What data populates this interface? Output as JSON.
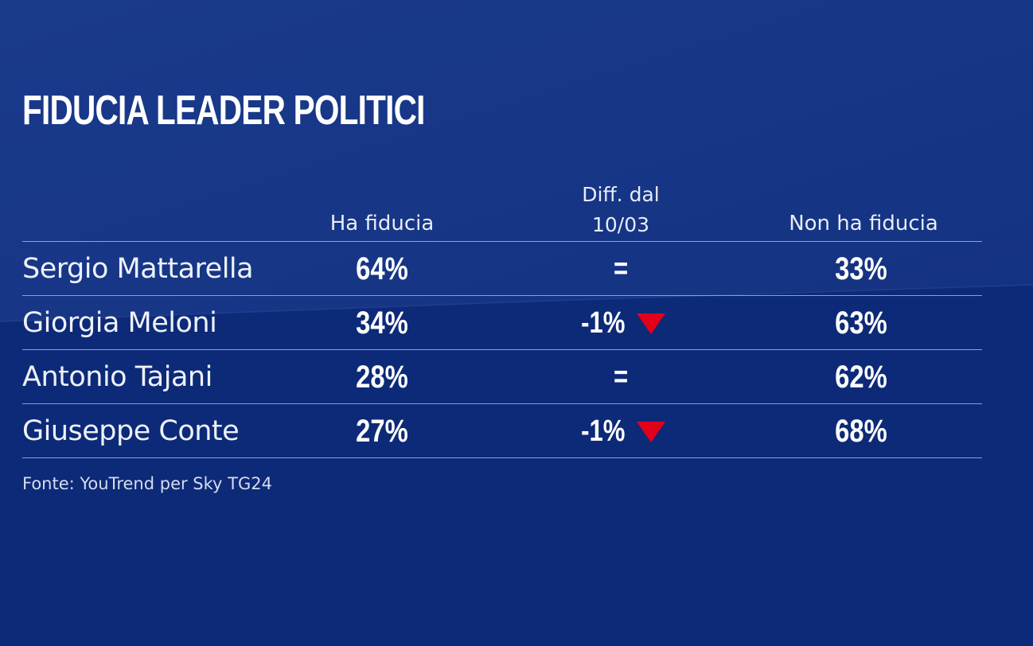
{
  "chart_data": {
    "type": "table",
    "title": "FIDUCIA LEADER POLITICI",
    "columns": [
      "Ha fiducia",
      "Diff. dal 10/03",
      "Non ha fiducia"
    ],
    "rows": [
      {
        "name": "Sergio Mattarella",
        "ha_fiducia": "64%",
        "diff": "=",
        "diff_trend": "none",
        "non_ha_fiducia": "33%"
      },
      {
        "name": "Giorgia Meloni",
        "ha_fiducia": "34%",
        "diff": "-1%",
        "diff_trend": "down",
        "non_ha_fiducia": "63%"
      },
      {
        "name": "Antonio Tajani",
        "ha_fiducia": "28%",
        "diff": "=",
        "diff_trend": "none",
        "non_ha_fiducia": "62%"
      },
      {
        "name": "Giuseppe Conte",
        "ha_fiducia": "27%",
        "diff": "-1%",
        "diff_trend": "down",
        "non_ha_fiducia": "68%"
      }
    ],
    "source": "Fonte: YouTrend per Sky TG24"
  },
  "header": {
    "col_ha": "Ha fiducia",
    "col_diff_line1": "Diff. dal",
    "col_diff_line2": "10/03",
    "col_non": "Non ha fiducia"
  },
  "colors": {
    "background": "#0d2a78",
    "background_light": "#1a3a8a",
    "down_arrow": "#e3001b",
    "rule": "#8fa0cc"
  },
  "icons": {
    "down_arrow": "triangle-down-icon"
  }
}
